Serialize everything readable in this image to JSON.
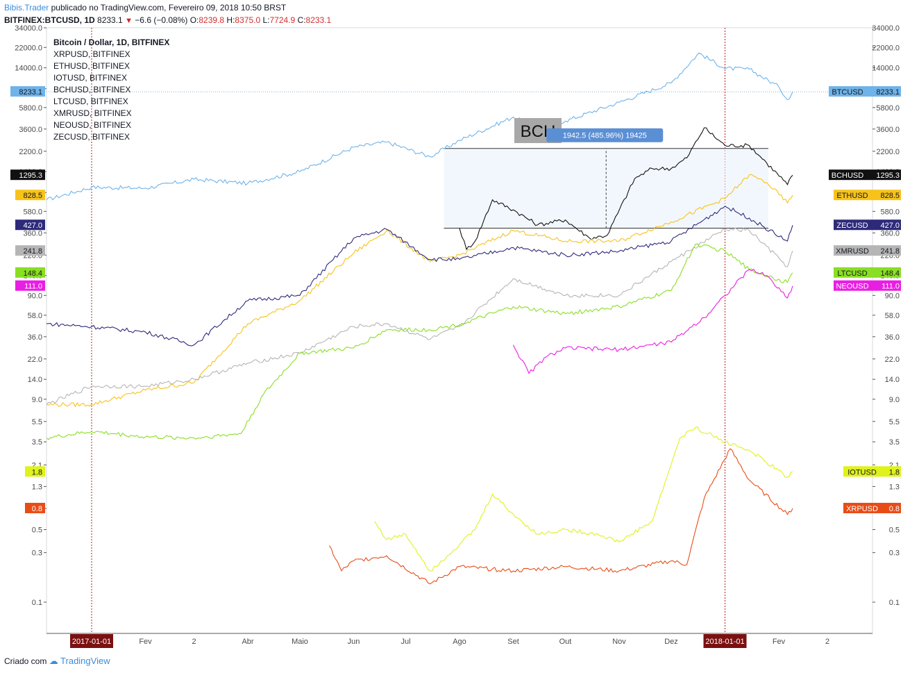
{
  "header": {
    "author": "Bibis.Trader",
    "published": "publicado no TradingView.com, Fevereiro 09, 2018 10:50 BRST",
    "symbol": "BITFINEX:BTCUSD, 1D",
    "last": "8233.1",
    "change": "−6.6 (−0.08%)",
    "o_label": "O:",
    "o_value": "8239.8",
    "h_label": "H:",
    "h_value": "8375.0",
    "l_label": "L:",
    "l_value": "7724.9",
    "c_label": "C:",
    "c_value": "8233.1"
  },
  "legend": [
    "Bitcoin / Dollar, 1D, BITFINEX",
    "XRPUSD, BITFINEX",
    "ETHUSD, BITFINEX",
    "IOTUSD, BITFINEX",
    "BCHUSD, BITFINEX",
    "LTCUSD, BITFINEX",
    "XMRUSD, BITFINEX",
    "NEOUSD, BITFINEX",
    "ZECUSD, BITFINEX"
  ],
  "footer": {
    "created": "Criado com",
    "brand": "TradingView"
  },
  "chart_data": {
    "type": "line",
    "scale": "log",
    "ylim": [
      0.05,
      34000
    ],
    "grid": false,
    "y_ticks": [
      "34000.0",
      "22000.0",
      "14000.0",
      "8800.0",
      "5800.0",
      "3600.0",
      "2200.0",
      "1400.0",
      "880.0",
      "580.0",
      "360.0",
      "220.0",
      "140.0",
      "90.0",
      "58.0",
      "36.0",
      "22.0",
      "14.0",
      "9.0",
      "5.5",
      "3.5",
      "2.1",
      "1.3",
      "0.8",
      "0.5",
      "0.3",
      "0.1"
    ],
    "y_tick_values": [
      34000,
      22000,
      14000,
      8800,
      5800,
      3600,
      2200,
      1400,
      880,
      580,
      360,
      220,
      140,
      90,
      58,
      36,
      22,
      14,
      9,
      5.5,
      3.5,
      2.1,
      1.3,
      0.8,
      0.5,
      0.3,
      0.1
    ],
    "x_ticks": [
      "2017-01-01",
      "Fev",
      "2",
      "Abr",
      "Maio",
      "Jun",
      "Jul",
      "Ago",
      "Set",
      "Out",
      "Nov",
      "Dez",
      "2018-01-01",
      "Fev",
      "2"
    ],
    "x_tick_values": [
      2016.0,
      2016.5,
      2017.7,
      2017.75,
      2017.85,
      2018,
      2018.1,
      2018.3,
      2018.4,
      2018.5,
      2018.6,
      2018.7,
      2018.95,
      2019.05,
      2019.15
    ],
    "x_range": [
      "2016-12-06",
      "2018-03-27"
    ],
    "vertical_markers": [
      "2017-01-01",
      "2018-01-01"
    ],
    "series": [
      {
        "name": "BTCUSD",
        "color": "#6fb3e8",
        "last": "8233.1",
        "x": [
          "2016-12-06",
          "2017-01-01",
          "2017-02-01",
          "2017-03-01",
          "2017-04-01",
          "2017-05-01",
          "2017-06-01",
          "2017-06-20",
          "2017-07-15",
          "2017-08-01",
          "2017-09-01",
          "2017-09-15",
          "2017-10-01",
          "2017-11-01",
          "2017-12-01",
          "2017-12-17",
          "2018-01-01",
          "2018-01-15",
          "2018-02-01",
          "2018-02-06",
          "2018-02-09"
        ],
        "values": [
          750,
          990,
          970,
          1180,
          1080,
          1400,
          2400,
          2700,
          1950,
          2800,
          4700,
          3700,
          4300,
          6500,
          10000,
          19400,
          13800,
          13600,
          9200,
          6900,
          8233
        ]
      },
      {
        "name": "BCHUSD",
        "color": "#111111",
        "last": "1295.3",
        "x": [
          "2017-08-01",
          "2017-08-05",
          "2017-08-10",
          "2017-08-20",
          "2017-09-01",
          "2017-09-15",
          "2017-10-01",
          "2017-10-15",
          "2017-10-25",
          "2017-11-10",
          "2017-11-20",
          "2017-12-01",
          "2017-12-10",
          "2017-12-20",
          "2018-01-01",
          "2018-01-15",
          "2018-01-25",
          "2018-02-06",
          "2018-02-09"
        ],
        "values": [
          400,
          250,
          300,
          750,
          600,
          430,
          480,
          320,
          340,
          1200,
          1500,
          1500,
          1900,
          3700,
          2500,
          2500,
          1700,
          1050,
          1295.3
        ]
      },
      {
        "name": "ETHUSD",
        "color": "#f7c21a",
        "last": "828.5",
        "x": [
          "2016-12-06",
          "2017-01-01",
          "2017-02-01",
          "2017-03-01",
          "2017-04-01",
          "2017-05-01",
          "2017-06-01",
          "2017-06-20",
          "2017-07-15",
          "2017-08-01",
          "2017-09-01",
          "2017-10-01",
          "2017-11-01",
          "2017-12-01",
          "2018-01-01",
          "2018-01-15",
          "2018-01-25",
          "2018-02-06",
          "2018-02-09"
        ],
        "values": [
          8,
          8,
          11,
          13,
          48,
          80,
          230,
          380,
          190,
          220,
          380,
          300,
          300,
          460,
          770,
          1300,
          1100,
          700,
          828.5
        ]
      },
      {
        "name": "ZECUSD",
        "color": "#2e2a7a",
        "last": "427.0",
        "x": [
          "2016-12-06",
          "2017-01-01",
          "2017-02-01",
          "2017-03-01",
          "2017-04-01",
          "2017-05-01",
          "2017-06-01",
          "2017-06-20",
          "2017-07-15",
          "2017-08-01",
          "2017-09-01",
          "2017-10-01",
          "2017-11-01",
          "2017-12-01",
          "2018-01-01",
          "2018-01-15",
          "2018-02-06",
          "2018-02-09"
        ],
        "values": [
          48,
          45,
          40,
          30,
          80,
          90,
          320,
          390,
          200,
          200,
          260,
          220,
          240,
          300,
          650,
          500,
          300,
          427
        ]
      },
      {
        "name": "XMRUSD",
        "color": "#b5b5b5",
        "last": "241.8",
        "x": [
          "2016-12-06",
          "2017-01-01",
          "2017-02-01",
          "2017-03-01",
          "2017-04-01",
          "2017-05-01",
          "2017-06-01",
          "2017-06-20",
          "2017-07-15",
          "2017-08-01",
          "2017-09-01",
          "2017-10-01",
          "2017-11-01",
          "2017-12-01",
          "2018-01-01",
          "2018-01-15",
          "2018-02-06",
          "2018-02-09"
        ],
        "values": [
          8,
          12,
          12,
          14,
          20,
          25,
          45,
          48,
          34,
          45,
          130,
          90,
          90,
          190,
          390,
          380,
          170,
          241.8
        ]
      },
      {
        "name": "LTCUSD",
        "color": "#8ade23",
        "last": "148.4",
        "x": [
          "2016-12-06",
          "2017-01-01",
          "2017-02-01",
          "2017-03-01",
          "2017-03-28",
          "2017-04-10",
          "2017-05-01",
          "2017-06-01",
          "2017-06-20",
          "2017-07-15",
          "2017-08-01",
          "2017-09-01",
          "2017-10-01",
          "2017-11-01",
          "2017-12-01",
          "2017-12-15",
          "2018-01-01",
          "2018-01-15",
          "2018-02-06",
          "2018-02-09"
        ],
        "values": [
          3.8,
          4.4,
          3.9,
          3.8,
          4.2,
          10,
          25,
          28,
          42,
          42,
          47,
          70,
          60,
          70,
          100,
          280,
          240,
          160,
          120,
          148.4
        ]
      },
      {
        "name": "NEOUSD",
        "color": "#e91ee3",
        "last": "111.0",
        "x": [
          "2017-09-01",
          "2017-09-10",
          "2017-09-20",
          "2017-10-01",
          "2017-11-01",
          "2017-12-01",
          "2017-12-20",
          "2018-01-01",
          "2018-01-15",
          "2018-01-25",
          "2018-02-06",
          "2018-02-09"
        ],
        "values": [
          30,
          16,
          23,
          28,
          27,
          32,
          55,
          90,
          160,
          140,
          85,
          111
        ]
      },
      {
        "name": "IOTUSD",
        "color": "#dff21a",
        "last": "1.8",
        "x": [
          "2017-06-13",
          "2017-06-20",
          "2017-07-01",
          "2017-07-15",
          "2017-07-25",
          "2017-08-10",
          "2017-08-20",
          "2017-09-01",
          "2017-09-15",
          "2017-10-01",
          "2017-10-20",
          "2017-11-01",
          "2017-11-20",
          "2017-12-06",
          "2017-12-15",
          "2018-01-01",
          "2018-01-15",
          "2018-02-06",
          "2018-02-09"
        ],
        "values": [
          0.6,
          0.4,
          0.45,
          0.2,
          0.28,
          0.5,
          1.1,
          0.7,
          0.45,
          0.5,
          0.45,
          0.38,
          0.6,
          3.8,
          4.8,
          3.5,
          2.9,
          1.6,
          1.8
        ]
      },
      {
        "name": "XRPUSD",
        "color": "#e84c16",
        "last": "0.8",
        "x": [
          "2017-05-18",
          "2017-05-25",
          "2017-06-01",
          "2017-06-20",
          "2017-07-15",
          "2017-08-01",
          "2017-09-01",
          "2017-10-01",
          "2017-11-01",
          "2017-12-01",
          "2017-12-10",
          "2017-12-20",
          "2018-01-04",
          "2018-01-15",
          "2018-02-06",
          "2018-02-09"
        ],
        "values": [
          0.35,
          0.2,
          0.25,
          0.28,
          0.15,
          0.22,
          0.2,
          0.22,
          0.2,
          0.25,
          0.23,
          1.0,
          3.0,
          1.5,
          0.7,
          0.8
        ]
      }
    ],
    "annotation": {
      "label": "BCH",
      "measure": "1942.5 (485.96%) 19425",
      "from_date": "2017-07-23",
      "to_date": "2018-01-26",
      "from_value": 400,
      "to_value": 2342.5
    }
  }
}
